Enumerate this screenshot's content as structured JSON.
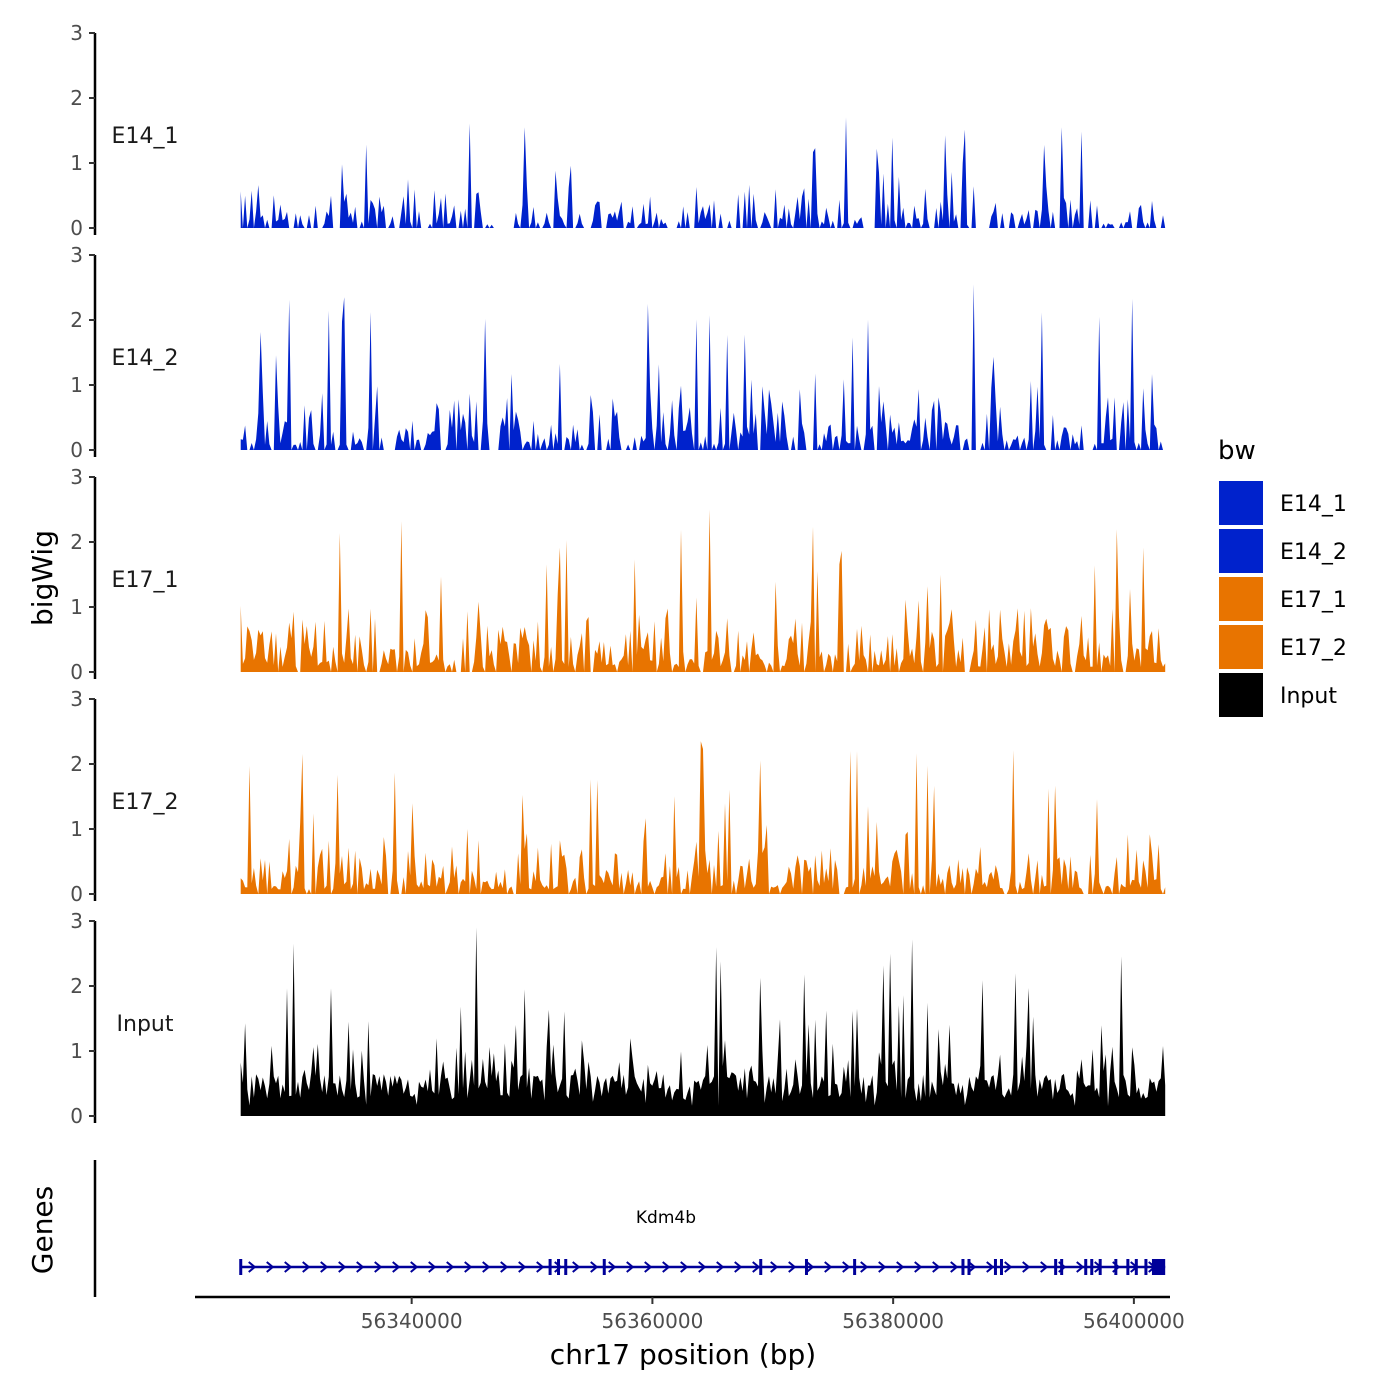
{
  "chart_data": {
    "type": "area",
    "y_axis_title": "bigWig",
    "gene_track_title": "Genes",
    "x_axis_title": "chr17 position (bp)",
    "x_ticks": [
      56340000,
      56360000,
      56380000,
      56400000
    ],
    "x_tick_labels": [
      "56340000",
      "56360000",
      "56380000",
      "56400000"
    ],
    "xlim": [
      56322000,
      56403000
    ],
    "data_range": [
      56325800,
      56402600
    ],
    "ylim": [
      0,
      3
    ],
    "y_ticks": [
      0,
      1,
      2,
      3
    ],
    "y_tick_labels": [
      "0",
      "1",
      "2",
      "3"
    ],
    "tracks": [
      {
        "name": "E14_1",
        "color": "#0022cc",
        "peak": 1.7,
        "max_value": 1.7,
        "density": 0.55
      },
      {
        "name": "E14_2",
        "color": "#0022cc",
        "peak": 2.55,
        "max_value": 2.55,
        "density": 0.7
      },
      {
        "name": "E17_1",
        "color": "#e87400",
        "peak": 2.5,
        "max_value": 2.5,
        "density": 0.85
      },
      {
        "name": "E17_2",
        "color": "#e87400",
        "peak": 2.35,
        "max_value": 2.35,
        "density": 0.85
      },
      {
        "name": "Input",
        "color": "#000000",
        "peak": 2.9,
        "max_value": 2.9,
        "density": 1.0
      }
    ],
    "legend": {
      "title": "bw",
      "position": "right",
      "entries": [
        {
          "label": "E14_1",
          "color": "#0022cc"
        },
        {
          "label": "E14_2",
          "color": "#0022cc"
        },
        {
          "label": "E17_1",
          "color": "#e87400"
        },
        {
          "label": "E17_2",
          "color": "#e87400"
        },
        {
          "label": "Input",
          "color": "#000000"
        }
      ]
    },
    "gene": {
      "name": "Kdm4b",
      "strand": "+",
      "color": "#000099",
      "start": 56325800,
      "end": 56402600,
      "exons": [
        56325800,
        56351500,
        56352200,
        56352800,
        56356000,
        56369000,
        56372800,
        56376800,
        56385800,
        56386300,
        56388500,
        56389000,
        56393500,
        56394000,
        56396000,
        56396500,
        56397200,
        56398500,
        56399500,
        56400200,
        56401000,
        56402000
      ]
    }
  }
}
